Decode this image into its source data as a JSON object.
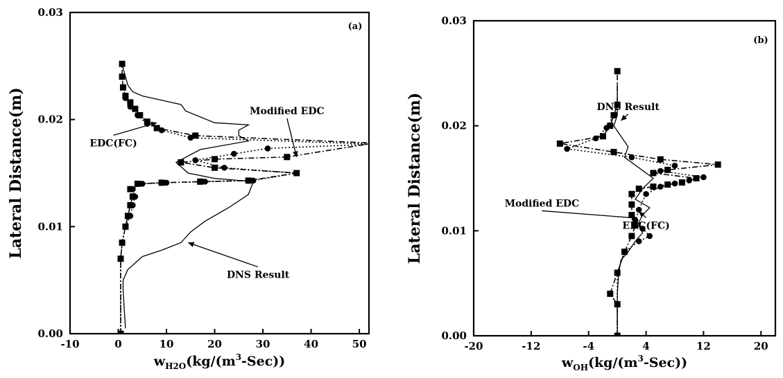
{
  "chart_data": [
    {
      "type": "line",
      "panel_label": "(a)",
      "ylabel": "Lateral Distance(m)",
      "xlabel_parts": {
        "w": "w",
        "sub": "H2O",
        "pre_sup": "(kg/(m",
        "sup": "3",
        "post_sup": "-Sec))"
      },
      "xlim": [
        -10,
        52
      ],
      "ylim": [
        0,
        0.03
      ],
      "xticks": [
        -10,
        0,
        10,
        20,
        30,
        40,
        50
      ],
      "xtick_labels": [
        "-10",
        "0",
        "10",
        "20",
        "30",
        "40",
        "50"
      ],
      "yticks": [
        0,
        0.01,
        0.02,
        0.03
      ],
      "ytick_labels": [
        "0.00",
        "0.01",
        "0.02",
        "0.03"
      ],
      "grid": false,
      "series": [
        {
          "name": "DNS Result",
          "marker": "none",
          "style": "solid",
          "x": [
            1.5,
            1.0,
            1.0,
            2.0,
            5.0,
            9.0,
            13.0,
            15.0,
            18.0,
            23.0,
            27.0,
            28.0,
            20.0,
            14.5,
            12.0,
            17.0,
            27.0,
            25.0,
            25.0,
            27.0,
            20.0,
            14.0,
            13.0,
            9.0,
            5.0,
            3.0,
            2.0,
            1.5,
            1.0,
            0.8
          ],
          "y": [
            0.0005,
            0.004,
            0.005,
            0.006,
            0.0072,
            0.0078,
            0.0085,
            0.0095,
            0.0105,
            0.0118,
            0.013,
            0.0142,
            0.0145,
            0.015,
            0.016,
            0.0172,
            0.018,
            0.0185,
            0.019,
            0.0195,
            0.0197,
            0.0208,
            0.0214,
            0.0218,
            0.0222,
            0.0226,
            0.0232,
            0.024,
            0.0248,
            0.0252
          ]
        },
        {
          "name": "Modified EDC",
          "marker": "square",
          "style": "dash-dot",
          "x": [
            0.5,
            0.5,
            0.8,
            1.5,
            2.0,
            2.5,
            3.0,
            2.5,
            4.0,
            9.0,
            17.0,
            27.0,
            37.0,
            20.0,
            13.0,
            20.0,
            35.0,
            53.0,
            16.0,
            8.0,
            6.0,
            4.5,
            3.5,
            2.5,
            1.5,
            1.0,
            0.8,
            0.8
          ],
          "y": [
            0.0,
            0.007,
            0.0085,
            0.01,
            0.011,
            0.012,
            0.0128,
            0.0135,
            0.014,
            0.0141,
            0.0142,
            0.0143,
            0.015,
            0.0155,
            0.016,
            0.0163,
            0.0165,
            0.0178,
            0.0185,
            0.0192,
            0.0198,
            0.0204,
            0.021,
            0.0216,
            0.0222,
            0.023,
            0.024,
            0.0252
          ]
        },
        {
          "name": "EDC(FC)",
          "marker": "circle",
          "style": "dotted",
          "x": [
            0.5,
            0.5,
            0.8,
            1.5,
            2.5,
            3.0,
            3.5,
            3.0,
            5.0,
            10.0,
            18.0,
            28.0,
            37.0,
            22.0,
            16.0,
            24.0,
            31.0,
            53.0,
            15.0,
            9.0,
            6.0,
            4.0,
            2.5,
            1.5
          ],
          "y": [
            0.0,
            0.007,
            0.0085,
            0.01,
            0.011,
            0.012,
            0.0128,
            0.0135,
            0.014,
            0.0141,
            0.0142,
            0.0143,
            0.015,
            0.0155,
            0.0162,
            0.0168,
            0.0173,
            0.0177,
            0.0183,
            0.019,
            0.0196,
            0.0204,
            0.0212,
            0.022
          ]
        }
      ],
      "annotations": [
        {
          "text": "Modified EDC",
          "x": 35,
          "y": 0.0205,
          "to_x": 37,
          "to_y": 0.0165
        },
        {
          "text": "EDC(FC)",
          "x": -1,
          "y": 0.0175,
          "to_x": 8,
          "to_y": 0.0197
        },
        {
          "text": "DNS Result",
          "x": 29,
          "y": 0.0052,
          "to_x": 14.5,
          "to_y": 0.0085
        }
      ]
    },
    {
      "type": "line",
      "panel_label": "(b)",
      "ylabel": "Lateral Distance(m)",
      "xlabel_parts": {
        "w": "w",
        "sub": "OH",
        "pre_sup": "(kg/(m",
        "sup": "3",
        "post_sup": "-Sec))"
      },
      "xlim": [
        -20,
        22
      ],
      "ylim": [
        0,
        0.03
      ],
      "xticks": [
        -20,
        -12,
        -4,
        4,
        12,
        20
      ],
      "xtick_labels": [
        "-20",
        "-12",
        "-4",
        "4",
        "12",
        "20"
      ],
      "yticks": [
        0,
        0.01,
        0.02,
        0.03
      ],
      "ytick_labels": [
        "0.00",
        "0.01",
        "0.02",
        "0.03"
      ],
      "grid": false,
      "series": [
        {
          "name": "DNS Result",
          "marker": "none",
          "style": "solid",
          "x": [
            0.0,
            0.0,
            0.2,
            0.5,
            1.5,
            2.5,
            3.5,
            3.0,
            3.5,
            4.5,
            2.5,
            3.5,
            5.0,
            3.0,
            1.0,
            1.5,
            0.5,
            -0.5,
            0.0,
            0.0
          ],
          "y": [
            0.0,
            0.004,
            0.006,
            0.0072,
            0.008,
            0.009,
            0.0098,
            0.0108,
            0.0115,
            0.0122,
            0.013,
            0.014,
            0.015,
            0.016,
            0.017,
            0.018,
            0.019,
            0.02,
            0.021,
            0.024
          ]
        },
        {
          "name": "Modified EDC",
          "marker": "square",
          "style": "dash-dot",
          "x": [
            0.0,
            0.0,
            -1.0,
            0.0,
            1.0,
            2.0,
            2.5,
            2.0,
            2.0,
            2.0,
            3.0,
            5.0,
            7.0,
            9.0,
            11.0,
            5.0,
            7.0,
            14.0,
            6.0,
            -0.5,
            -8.0,
            -2.0,
            -1.0,
            -0.5,
            0.0,
            0.0
          ],
          "y": [
            0.0,
            0.003,
            0.004,
            0.006,
            0.008,
            0.0095,
            0.0105,
            0.0115,
            0.0125,
            0.0135,
            0.014,
            0.0142,
            0.0144,
            0.0146,
            0.015,
            0.0155,
            0.0158,
            0.0163,
            0.0168,
            0.0175,
            0.0183,
            0.019,
            0.02,
            0.021,
            0.022,
            0.0252
          ]
        },
        {
          "name": "EDC(FC)",
          "marker": "circle",
          "style": "dotted",
          "x": [
            0.0,
            0.0,
            1.0,
            3.0,
            4.5,
            3.5,
            2.5,
            3.0,
            4.0,
            6.0,
            8.0,
            10.0,
            12.0,
            6.0,
            8.0,
            2.0,
            -7.0,
            -3.0,
            -1.5,
            -0.5
          ],
          "y": [
            0.0,
            0.006,
            0.008,
            0.009,
            0.0095,
            0.0102,
            0.011,
            0.012,
            0.0135,
            0.0142,
            0.0145,
            0.0148,
            0.0151,
            0.0157,
            0.0162,
            0.017,
            0.0178,
            0.0188,
            0.0198,
            0.021
          ]
        }
      ],
      "annotations": [
        {
          "text": "DNS Result",
          "x": 1.5,
          "y": 0.0215,
          "to_x": 0.5,
          "to_y": 0.0205
        },
        {
          "text": "Modified EDC",
          "x": -10.5,
          "y": 0.0123,
          "to_x": 2.8,
          "to_y": 0.0112
        },
        {
          "text": "EDC(FC)",
          "x": 4.0,
          "y": 0.0102,
          "to_x": 3.0,
          "to_y": 0.0118
        }
      ]
    }
  ]
}
